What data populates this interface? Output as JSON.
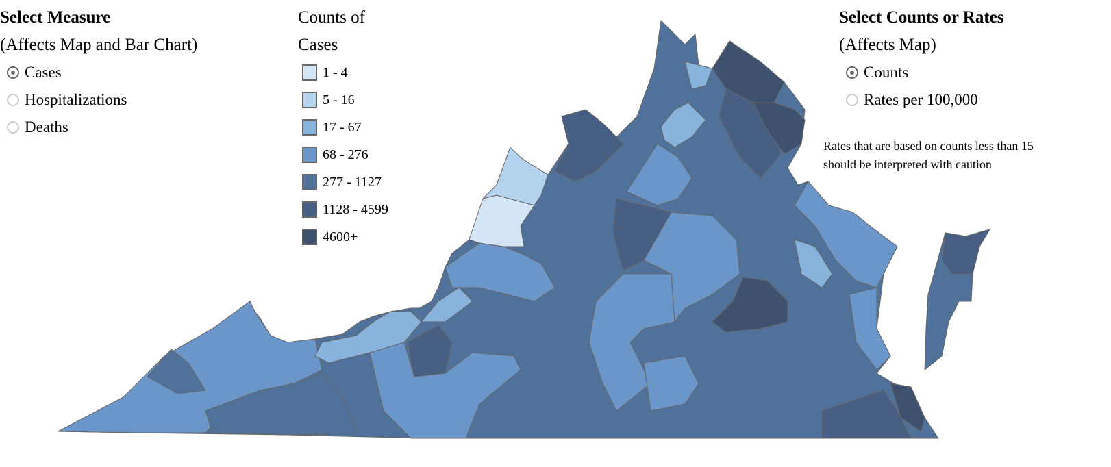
{
  "measure": {
    "title": "Select Measure",
    "subtitle": "(Affects Map and Bar Chart)",
    "options": [
      {
        "label": "Cases",
        "selected": true
      },
      {
        "label": "Hospitalizations",
        "selected": false
      },
      {
        "label": "Deaths",
        "selected": false
      }
    ]
  },
  "legend": {
    "title": "Counts of Cases",
    "bins": [
      {
        "label": "1 - 4",
        "color": "#d4e5f5"
      },
      {
        "label": "5 - 16",
        "color": "#b3d3ee"
      },
      {
        "label": "17 - 67",
        "color": "#88b3dd"
      },
      {
        "label": "68 - 276",
        "color": "#6b96c9"
      },
      {
        "label": "277 - 1127",
        "color": "#50719a"
      },
      {
        "label": "1128 - 4599",
        "color": "#465f83"
      },
      {
        "label": "4600+",
        "color": "#3e526f"
      }
    ]
  },
  "rates": {
    "title": "Select Counts or Rates",
    "subtitle": "(Affects Map)",
    "options": [
      {
        "label": "Counts",
        "selected": true
      },
      {
        "label": "Rates per 100,000",
        "selected": false
      }
    ],
    "note": "Rates that are based on counts less than 15 should be interpreted with caution"
  }
}
